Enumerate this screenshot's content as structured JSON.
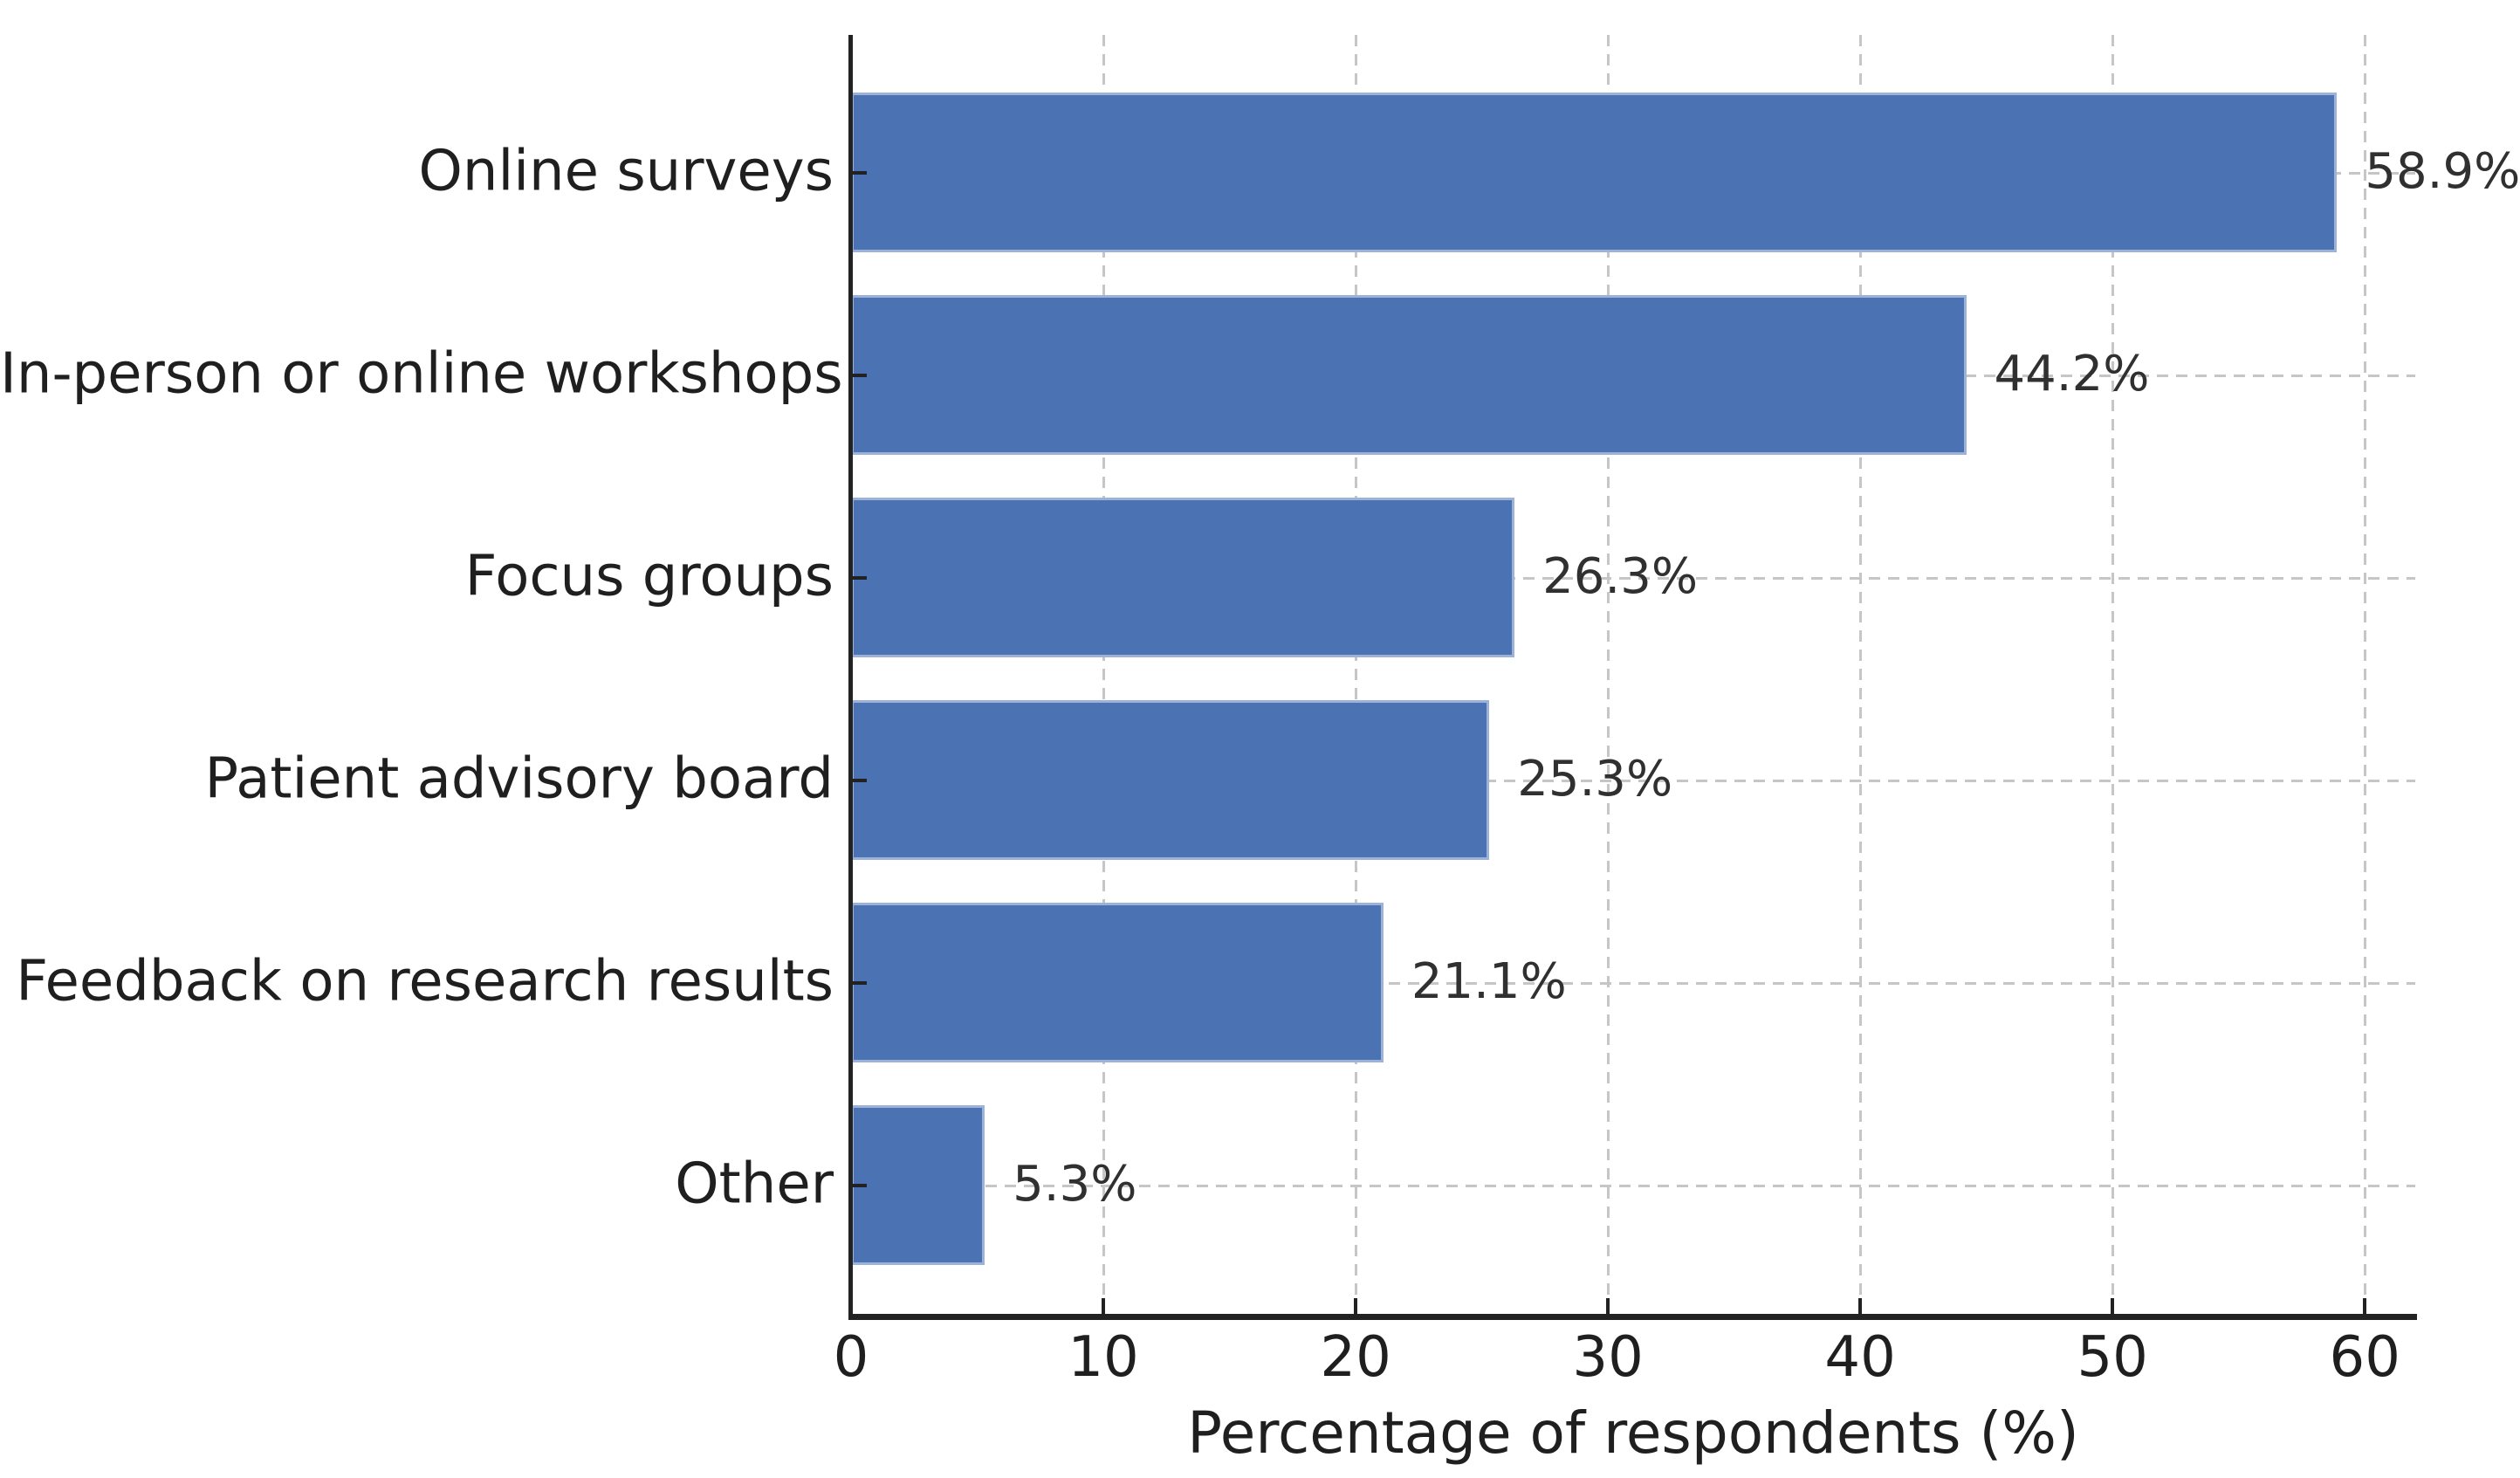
{
  "chart_data": {
    "type": "bar",
    "orientation": "horizontal",
    "title": "",
    "xlabel": "Percentage of respondents (%)",
    "ylabel": "",
    "categories": [
      "Online surveys",
      "In-person or online workshops",
      "Focus groups",
      "Patient advisory board",
      "Feedback on research results",
      "Other"
    ],
    "values": [
      58.9,
      44.2,
      26.3,
      25.3,
      21.1,
      5.3
    ],
    "value_labels": [
      "58.9%",
      "44.2%",
      "26.3%",
      "25.3%",
      "21.1%",
      "5.3%"
    ],
    "xlim": [
      0,
      62
    ],
    "xticks": [
      0,
      10,
      20,
      30,
      40,
      50,
      60
    ],
    "grid": {
      "vertical": true,
      "horizontal": true,
      "style": "dashed"
    },
    "legend": null,
    "colors": {
      "bar": "#4b73b4",
      "bar_edge": "rgba(255,255,255,0.45)",
      "grid": "#c6c6c6",
      "axis": "#222222",
      "text": "#1f1f1f",
      "value_text": "#303030",
      "background": "#ffffff"
    }
  }
}
